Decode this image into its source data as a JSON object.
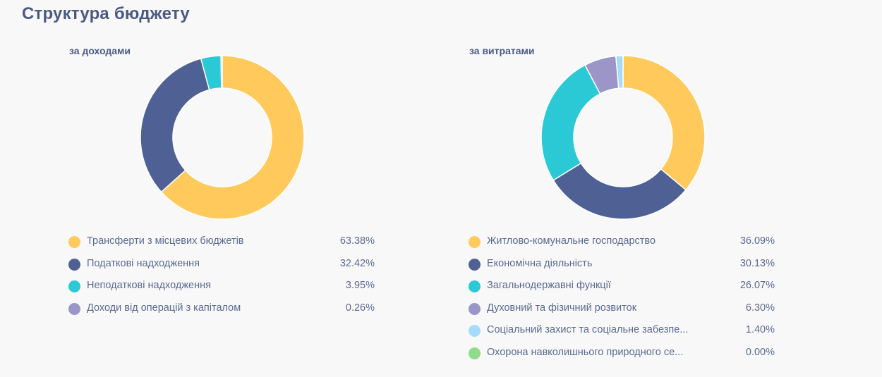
{
  "page": {
    "title": "Структура бюджету"
  },
  "chart_data": [
    {
      "type": "pie",
      "title": "за доходами",
      "donut": true,
      "categories": [
        "Трансферти з місцевих бюджетів",
        "Податкові надходження",
        "Неподаткові надходження",
        "Доходи від операцій з капіталом"
      ],
      "values": [
        63.38,
        32.42,
        3.95,
        0.26
      ],
      "value_labels": [
        "63.38%",
        "32.42%",
        "3.95%",
        "0.26%"
      ],
      "colors": [
        "#ffc95c",
        "#4f6194",
        "#2bc9d5",
        "#9b95c8"
      ]
    },
    {
      "type": "pie",
      "title": "за витратами",
      "donut": true,
      "categories": [
        "Житлово-комунальне господарство",
        "Економічна діяльність",
        "Загальнодержавні функції",
        "Духовний та фізичний розвиток",
        "Соціальний захист та соціальне забезпе...",
        "Охорона навколишнього природного се..."
      ],
      "values": [
        36.09,
        30.13,
        26.07,
        6.3,
        1.4,
        0.0
      ],
      "value_labels": [
        "36.09%",
        "30.13%",
        "26.07%",
        "6.30%",
        "1.40%",
        "0.00%"
      ],
      "colors": [
        "#ffc95c",
        "#4f6194",
        "#2bc9d5",
        "#9b95c8",
        "#a6dcfb",
        "#8fdc8b"
      ]
    }
  ]
}
